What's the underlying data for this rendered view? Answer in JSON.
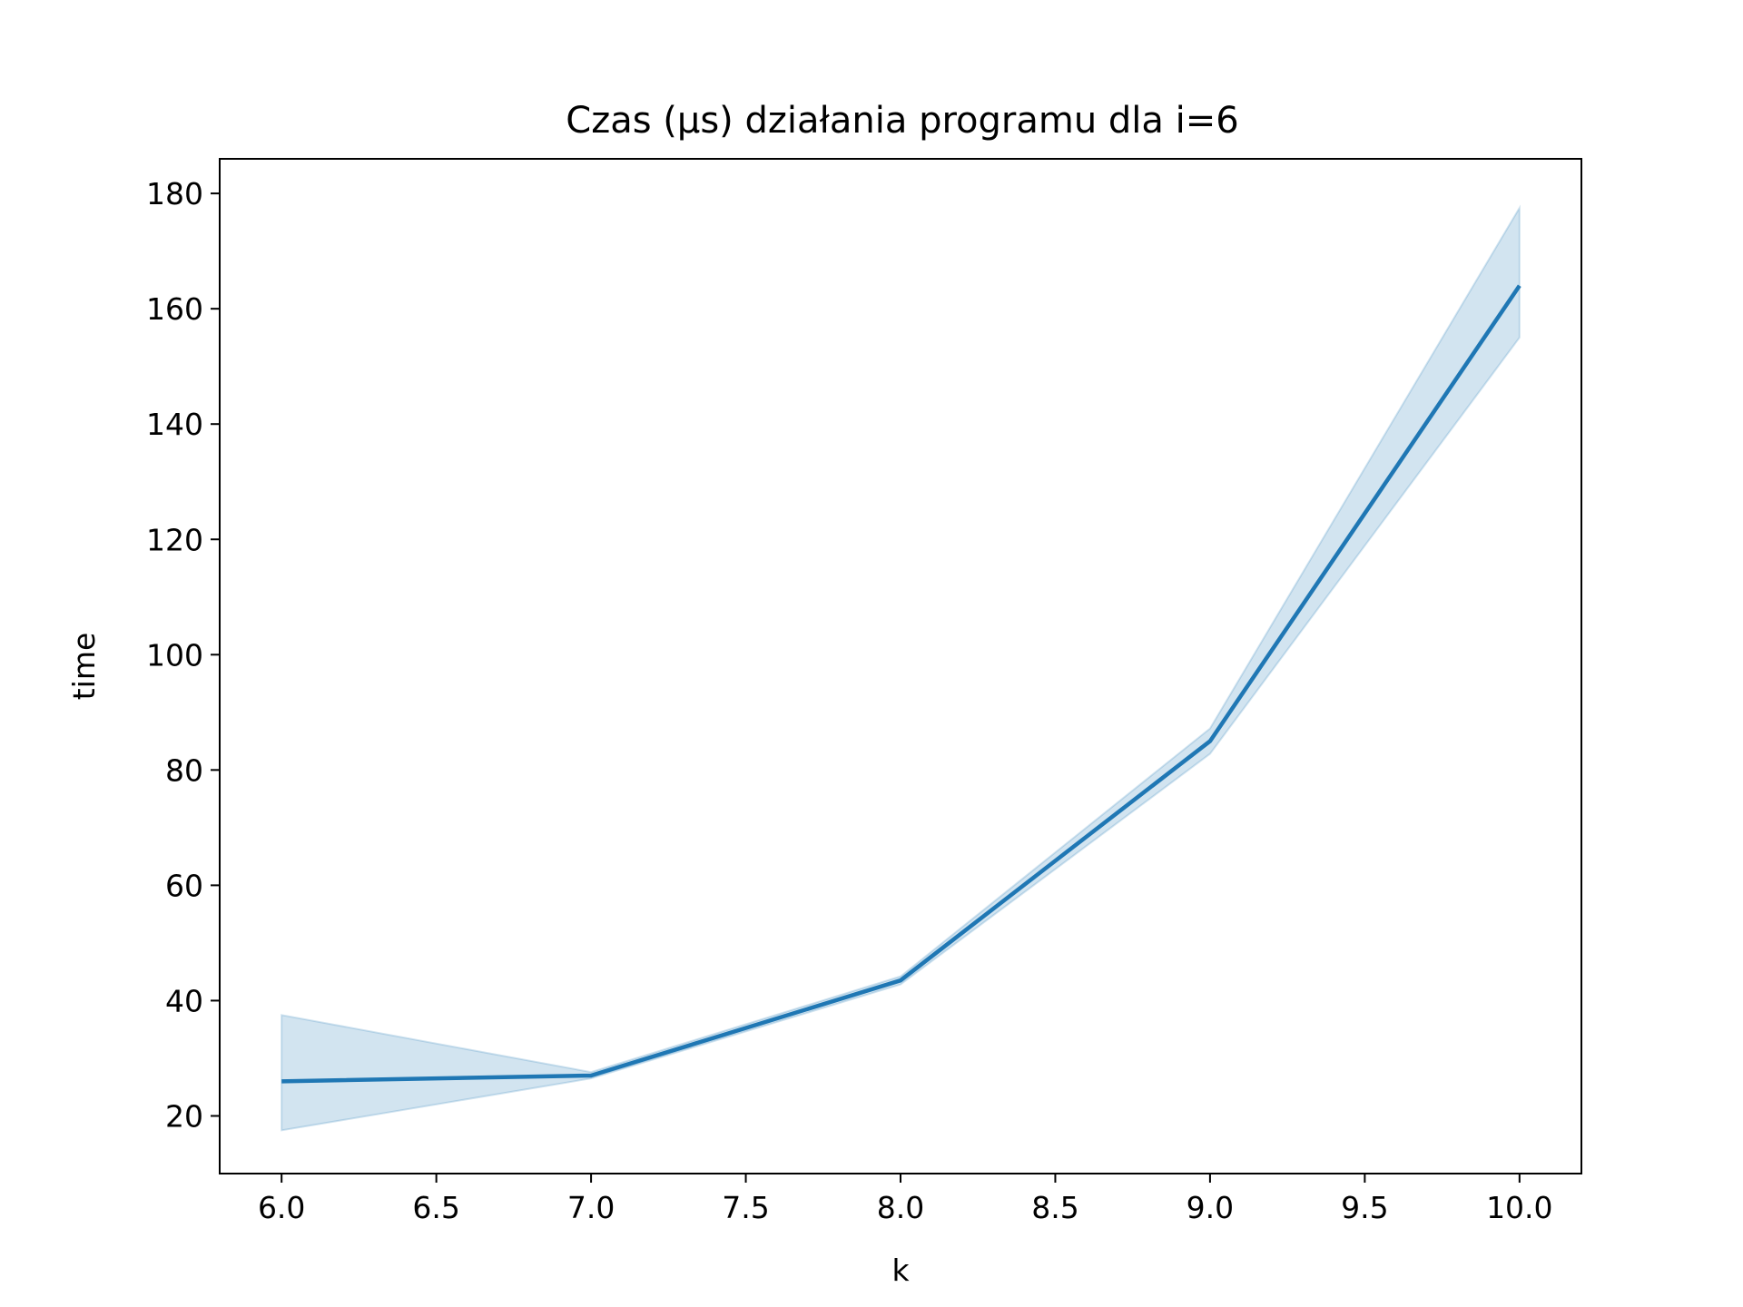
{
  "chart_data": {
    "type": "line",
    "title": "Czas (µs) działania programu dla i=6",
    "xlabel": "k",
    "ylabel": "time",
    "xlim": [
      5.8,
      10.2
    ],
    "ylim": [
      10,
      186
    ],
    "xticks": [
      6.0,
      6.5,
      7.0,
      7.5,
      8.0,
      8.5,
      9.0,
      9.5,
      10.0
    ],
    "xtick_labels": [
      "6.0",
      "6.5",
      "7.0",
      "7.5",
      "8.0",
      "8.5",
      "9.0",
      "9.5",
      "10.0"
    ],
    "yticks": [
      20,
      40,
      60,
      80,
      100,
      120,
      140,
      160,
      180
    ],
    "ytick_labels": [
      "20",
      "40",
      "60",
      "80",
      "100",
      "120",
      "140",
      "160",
      "180"
    ],
    "grid": false,
    "series": [
      {
        "x": [
          6,
          7,
          8,
          9,
          10
        ],
        "y": [
          26,
          27,
          43.5,
          85,
          164
        ],
        "ci_low": [
          17.5,
          26.5,
          42.8,
          82.8,
          155
        ],
        "ci_high": [
          37.5,
          27.6,
          44.2,
          87.2,
          177.5
        ],
        "color": "#1f77b4",
        "band_color": "#1f77b4"
      }
    ]
  }
}
